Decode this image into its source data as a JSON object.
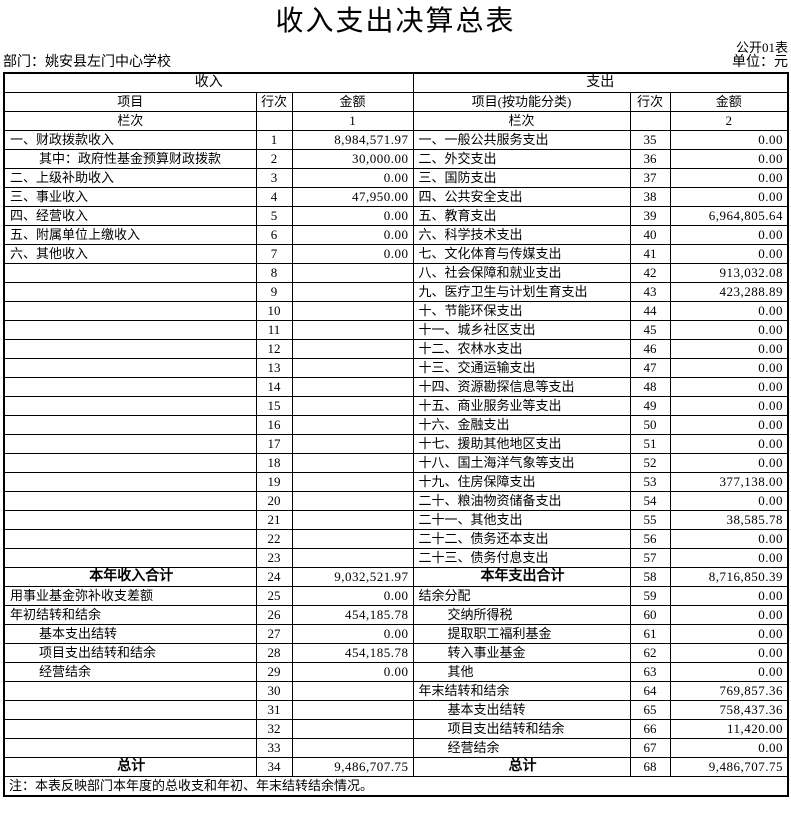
{
  "title": "收入支出决算总表",
  "form_label": "公开01表",
  "department": "部门：姚安县左门中心学校",
  "unit": "单位：元",
  "table": {
    "income_section": "收入",
    "expense_section": "支出",
    "columns": {
      "income_item": "项目",
      "income_line": "行次",
      "income_amount": "金额",
      "expense_item": "项目(按功能分类)",
      "expense_line": "行次",
      "expense_amount": "金额"
    },
    "lanci_label": "栏次",
    "income_col_no": "1",
    "expense_col_no": "2",
    "rows": [
      {
        "income": {
          "item": "一、财政拨款收入",
          "line": "1",
          "amount": "8,984,571.97"
        },
        "expense": {
          "item": "一、一般公共服务支出",
          "line": "35",
          "amount": "0.00"
        }
      },
      {
        "income": {
          "item": "其中：政府性基金预算财政拨款",
          "line": "2",
          "amount": "30,000.00",
          "indent": 1
        },
        "expense": {
          "item": "二、外交支出",
          "line": "36",
          "amount": "0.00"
        }
      },
      {
        "income": {
          "item": "二、上级补助收入",
          "line": "3",
          "amount": "0.00"
        },
        "expense": {
          "item": "三、国防支出",
          "line": "37",
          "amount": "0.00"
        }
      },
      {
        "income": {
          "item": "三、事业收入",
          "line": "4",
          "amount": "47,950.00"
        },
        "expense": {
          "item": "四、公共安全支出",
          "line": "38",
          "amount": "0.00"
        }
      },
      {
        "income": {
          "item": "四、经营收入",
          "line": "5",
          "amount": "0.00"
        },
        "expense": {
          "item": "五、教育支出",
          "line": "39",
          "amount": "6,964,805.64"
        }
      },
      {
        "income": {
          "item": "五、附属单位上缴收入",
          "line": "6",
          "amount": "0.00"
        },
        "expense": {
          "item": "六、科学技术支出",
          "line": "40",
          "amount": "0.00"
        }
      },
      {
        "income": {
          "item": "六、其他收入",
          "line": "7",
          "amount": "0.00"
        },
        "expense": {
          "item": "七、文化体育与传媒支出",
          "line": "41",
          "amount": "0.00"
        }
      },
      {
        "income": {
          "item": "",
          "line": "8",
          "amount": ""
        },
        "expense": {
          "item": "八、社会保障和就业支出",
          "line": "42",
          "amount": "913,032.08"
        }
      },
      {
        "income": {
          "item": "",
          "line": "9",
          "amount": ""
        },
        "expense": {
          "item": "九、医疗卫生与计划生育支出",
          "line": "43",
          "amount": "423,288.89"
        }
      },
      {
        "income": {
          "item": "",
          "line": "10",
          "amount": ""
        },
        "expense": {
          "item": "十、节能环保支出",
          "line": "44",
          "amount": "0.00"
        }
      },
      {
        "income": {
          "item": "",
          "line": "11",
          "amount": ""
        },
        "expense": {
          "item": "十一、城乡社区支出",
          "line": "45",
          "amount": "0.00"
        }
      },
      {
        "income": {
          "item": "",
          "line": "12",
          "amount": ""
        },
        "expense": {
          "item": "十二、农林水支出",
          "line": "46",
          "amount": "0.00"
        }
      },
      {
        "income": {
          "item": "",
          "line": "13",
          "amount": ""
        },
        "expense": {
          "item": "十三、交通运输支出",
          "line": "47",
          "amount": "0.00"
        }
      },
      {
        "income": {
          "item": "",
          "line": "14",
          "amount": ""
        },
        "expense": {
          "item": "十四、资源勘探信息等支出",
          "line": "48",
          "amount": "0.00"
        }
      },
      {
        "income": {
          "item": "",
          "line": "15",
          "amount": ""
        },
        "expense": {
          "item": "十五、商业服务业等支出",
          "line": "49",
          "amount": "0.00"
        }
      },
      {
        "income": {
          "item": "",
          "line": "16",
          "amount": ""
        },
        "expense": {
          "item": "十六、金融支出",
          "line": "50",
          "amount": "0.00"
        }
      },
      {
        "income": {
          "item": "",
          "line": "17",
          "amount": ""
        },
        "expense": {
          "item": "十七、援助其他地区支出",
          "line": "51",
          "amount": "0.00"
        }
      },
      {
        "income": {
          "item": "",
          "line": "18",
          "amount": ""
        },
        "expense": {
          "item": "十八、国土海洋气象等支出",
          "line": "52",
          "amount": "0.00"
        }
      },
      {
        "income": {
          "item": "",
          "line": "19",
          "amount": ""
        },
        "expense": {
          "item": "十九、住房保障支出",
          "line": "53",
          "amount": "377,138.00"
        }
      },
      {
        "income": {
          "item": "",
          "line": "20",
          "amount": ""
        },
        "expense": {
          "item": "二十、粮油物资储备支出",
          "line": "54",
          "amount": "0.00"
        }
      },
      {
        "income": {
          "item": "",
          "line": "21",
          "amount": ""
        },
        "expense": {
          "item": "二十一、其他支出",
          "line": "55",
          "amount": "38,585.78"
        }
      },
      {
        "income": {
          "item": "",
          "line": "22",
          "amount": ""
        },
        "expense": {
          "item": "二十二、债务还本支出",
          "line": "56",
          "amount": "0.00"
        }
      },
      {
        "income": {
          "item": "",
          "line": "23",
          "amount": ""
        },
        "expense": {
          "item": "二十三、债务付息支出",
          "line": "57",
          "amount": "0.00"
        }
      },
      {
        "income": {
          "item": "本年收入合计",
          "line": "24",
          "amount": "9,032,521.97",
          "bold": true
        },
        "expense": {
          "item": "本年支出合计",
          "line": "58",
          "amount": "8,716,850.39",
          "bold": true
        }
      },
      {
        "income": {
          "item": "用事业基金弥补收支差额",
          "line": "25",
          "amount": "0.00"
        },
        "expense": {
          "item": "结余分配",
          "line": "59",
          "amount": "0.00"
        }
      },
      {
        "income": {
          "item": "年初结转和结余",
          "line": "26",
          "amount": "454,185.78"
        },
        "expense": {
          "item": "交纳所得税",
          "line": "60",
          "amount": "0.00",
          "indent": 1
        }
      },
      {
        "income": {
          "item": "基本支出结转",
          "line": "27",
          "amount": "0.00",
          "indent": 1
        },
        "expense": {
          "item": "提取职工福利基金",
          "line": "61",
          "amount": "0.00",
          "indent": 1
        }
      },
      {
        "income": {
          "item": "项目支出结转和结余",
          "line": "28",
          "amount": "454,185.78",
          "indent": 1
        },
        "expense": {
          "item": "转入事业基金",
          "line": "62",
          "amount": "0.00",
          "indent": 1
        }
      },
      {
        "income": {
          "item": "经营结余",
          "line": "29",
          "amount": "0.00",
          "indent": 1
        },
        "expense": {
          "item": "其他",
          "line": "63",
          "amount": "0.00",
          "indent": 1
        }
      },
      {
        "income": {
          "item": "",
          "line": "30",
          "amount": ""
        },
        "expense": {
          "item": "年末结转和结余",
          "line": "64",
          "amount": "769,857.36"
        }
      },
      {
        "income": {
          "item": "",
          "line": "31",
          "amount": ""
        },
        "expense": {
          "item": "基本支出结转",
          "line": "65",
          "amount": "758,437.36",
          "indent": 1
        }
      },
      {
        "income": {
          "item": "",
          "line": "32",
          "amount": ""
        },
        "expense": {
          "item": "项目支出结转和结余",
          "line": "66",
          "amount": "11,420.00",
          "indent": 1
        }
      },
      {
        "income": {
          "item": "",
          "line": "33",
          "amount": ""
        },
        "expense": {
          "item": "经营结余",
          "line": "67",
          "amount": "0.00",
          "indent": 1
        }
      },
      {
        "income": {
          "item": "总计",
          "line": "34",
          "amount": "9,486,707.75",
          "bold": true
        },
        "expense": {
          "item": "总计",
          "line": "68",
          "amount": "9,486,707.75",
          "bold": true
        }
      }
    ]
  },
  "footnote": "注：本表反映部门本年度的总收支和年初、年末结转结余情况。"
}
